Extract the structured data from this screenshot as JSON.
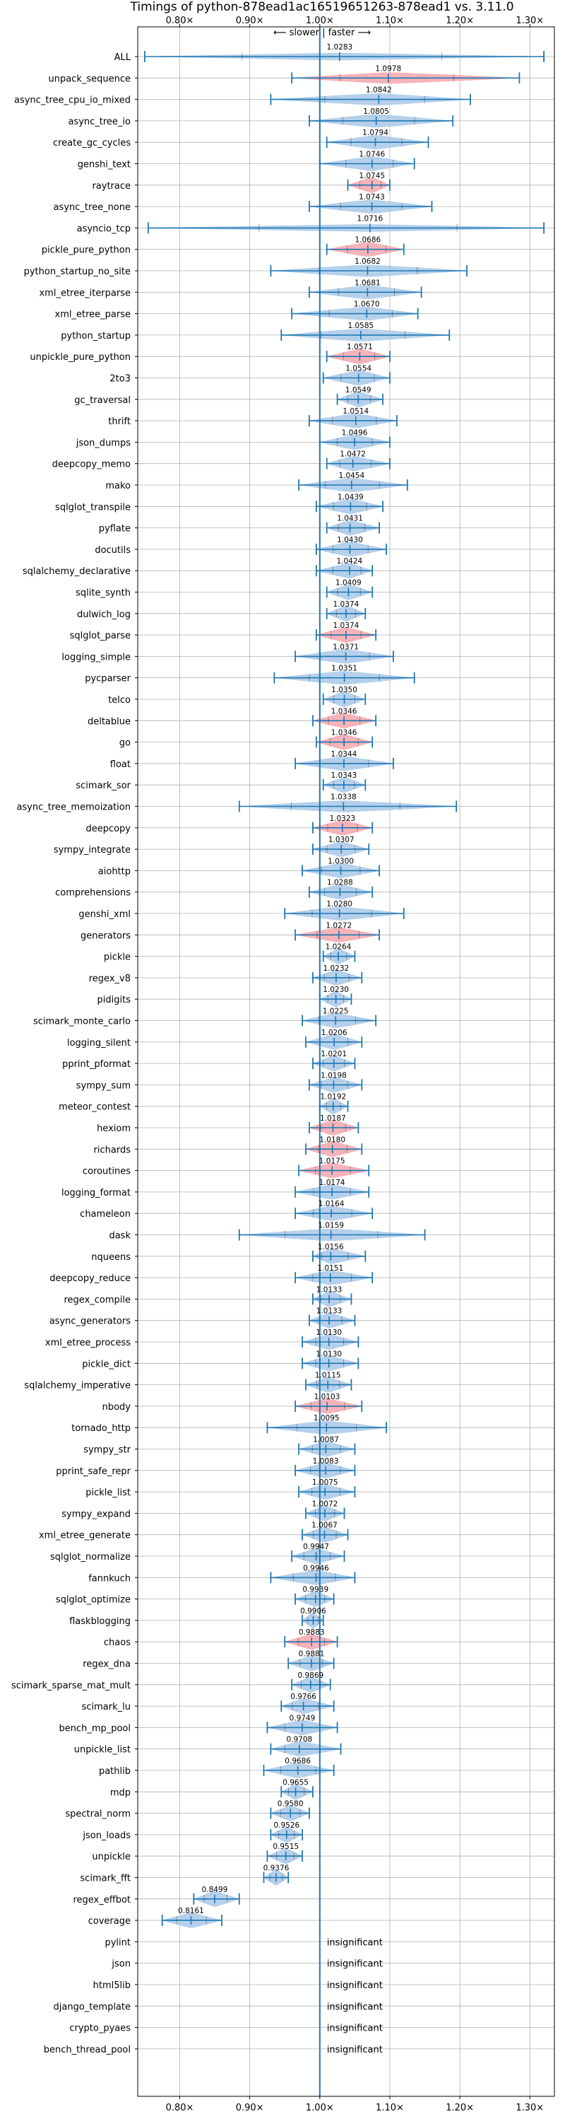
{
  "chart_data": {
    "type": "violin",
    "title": "Timings of python-878ead1ac16519651263-878ead1 vs. 3.11.0",
    "subtitle": "⟵ slower | faster ⟶",
    "xlim": [
      0.74,
      1.335
    ],
    "x_ticks": [
      0.8,
      0.9,
      1.0,
      1.1,
      1.2,
      1.3
    ],
    "x_tick_labels": [
      "0.80×",
      "0.90×",
      "1.00×",
      "1.10×",
      "1.20×",
      "1.30×"
    ],
    "reference_line": 1.0,
    "grid": true,
    "colors": {
      "faster": "#a8c8e8",
      "slower": "#f4a6ac",
      "line": "#1f77b4"
    },
    "series": [
      {
        "label": "ALL",
        "value": 1.0283,
        "lo": 0.75,
        "hi": 1.32,
        "slower": false
      },
      {
        "label": "unpack_sequence",
        "value": 1.0978,
        "lo": 0.96,
        "hi": 1.285,
        "slower": true
      },
      {
        "label": "async_tree_cpu_io_mixed",
        "value": 1.0842,
        "lo": 0.93,
        "hi": 1.215,
        "slower": false
      },
      {
        "label": "async_tree_io",
        "value": 1.0805,
        "lo": 0.985,
        "hi": 1.19,
        "slower": false
      },
      {
        "label": "create_gc_cycles",
        "value": 1.0794,
        "lo": 1.01,
        "hi": 1.155,
        "slower": false
      },
      {
        "label": "genshi_text",
        "value": 1.0746,
        "lo": 1.0,
        "hi": 1.135,
        "slower": false
      },
      {
        "label": "raytrace",
        "value": 1.0745,
        "lo": 1.04,
        "hi": 1.1,
        "slower": true
      },
      {
        "label": "async_tree_none",
        "value": 1.0743,
        "lo": 0.985,
        "hi": 1.16,
        "slower": false
      },
      {
        "label": "asyncio_tcp",
        "value": 1.0716,
        "lo": 0.755,
        "hi": 1.32,
        "slower": false
      },
      {
        "label": "pickle_pure_python",
        "value": 1.0686,
        "lo": 1.01,
        "hi": 1.12,
        "slower": true
      },
      {
        "label": "python_startup_no_site",
        "value": 1.0682,
        "lo": 0.93,
        "hi": 1.21,
        "slower": false
      },
      {
        "label": "xml_etree_iterparse",
        "value": 1.0681,
        "lo": 0.985,
        "hi": 1.145,
        "slower": false
      },
      {
        "label": "xml_etree_parse",
        "value": 1.067,
        "lo": 0.96,
        "hi": 1.14,
        "slower": false
      },
      {
        "label": "python_startup",
        "value": 1.0585,
        "lo": 0.945,
        "hi": 1.185,
        "slower": false
      },
      {
        "label": "unpickle_pure_python",
        "value": 1.0571,
        "lo": 1.01,
        "hi": 1.1,
        "slower": true
      },
      {
        "label": "2to3",
        "value": 1.0554,
        "lo": 1.005,
        "hi": 1.1,
        "slower": false
      },
      {
        "label": "gc_traversal",
        "value": 1.0549,
        "lo": 1.025,
        "hi": 1.09,
        "slower": false
      },
      {
        "label": "thrift",
        "value": 1.0514,
        "lo": 0.985,
        "hi": 1.11,
        "slower": false
      },
      {
        "label": "json_dumps",
        "value": 1.0496,
        "lo": 1.0,
        "hi": 1.1,
        "slower": false
      },
      {
        "label": "deepcopy_memo",
        "value": 1.0472,
        "lo": 1.01,
        "hi": 1.1,
        "slower": false
      },
      {
        "label": "mako",
        "value": 1.0454,
        "lo": 0.97,
        "hi": 1.125,
        "slower": false
      },
      {
        "label": "sqlglot_transpile",
        "value": 1.0439,
        "lo": 0.995,
        "hi": 1.09,
        "slower": false
      },
      {
        "label": "pyflate",
        "value": 1.0431,
        "lo": 1.01,
        "hi": 1.085,
        "slower": false
      },
      {
        "label": "docutils",
        "value": 1.043,
        "lo": 0.995,
        "hi": 1.095,
        "slower": false
      },
      {
        "label": "sqlalchemy_declarative",
        "value": 1.0424,
        "lo": 0.995,
        "hi": 1.075,
        "slower": false
      },
      {
        "label": "sqlite_synth",
        "value": 1.0409,
        "lo": 1.01,
        "hi": 1.075,
        "slower": false
      },
      {
        "label": "dulwich_log",
        "value": 1.0374,
        "lo": 1.01,
        "hi": 1.065,
        "slower": false
      },
      {
        "label": "sqlglot_parse",
        "value": 1.0374,
        "lo": 0.995,
        "hi": 1.08,
        "slower": true
      },
      {
        "label": "logging_simple",
        "value": 1.0371,
        "lo": 0.965,
        "hi": 1.105,
        "slower": false
      },
      {
        "label": "pycparser",
        "value": 1.0351,
        "lo": 0.935,
        "hi": 1.135,
        "slower": false
      },
      {
        "label": "telco",
        "value": 1.035,
        "lo": 1.005,
        "hi": 1.065,
        "slower": false
      },
      {
        "label": "deltablue",
        "value": 1.0346,
        "lo": 0.99,
        "hi": 1.08,
        "slower": true
      },
      {
        "label": "go",
        "value": 1.0346,
        "lo": 0.995,
        "hi": 1.075,
        "slower": true
      },
      {
        "label": "float",
        "value": 1.0344,
        "lo": 0.965,
        "hi": 1.105,
        "slower": false
      },
      {
        "label": "scimark_sor",
        "value": 1.0343,
        "lo": 1.005,
        "hi": 1.065,
        "slower": false
      },
      {
        "label": "async_tree_memoization",
        "value": 1.0338,
        "lo": 0.885,
        "hi": 1.195,
        "slower": false
      },
      {
        "label": "deepcopy",
        "value": 1.0323,
        "lo": 0.99,
        "hi": 1.075,
        "slower": true
      },
      {
        "label": "sympy_integrate",
        "value": 1.0307,
        "lo": 0.99,
        "hi": 1.07,
        "slower": false
      },
      {
        "label": "aiohttp",
        "value": 1.03,
        "lo": 0.975,
        "hi": 1.085,
        "slower": false
      },
      {
        "label": "comprehensions",
        "value": 1.0288,
        "lo": 0.985,
        "hi": 1.075,
        "slower": false
      },
      {
        "label": "genshi_xml",
        "value": 1.028,
        "lo": 0.95,
        "hi": 1.12,
        "slower": false
      },
      {
        "label": "generators",
        "value": 1.0272,
        "lo": 0.965,
        "hi": 1.085,
        "slower": true
      },
      {
        "label": "pickle",
        "value": 1.0264,
        "lo": 1.005,
        "hi": 1.05,
        "slower": false
      },
      {
        "label": "regex_v8",
        "value": 1.0232,
        "lo": 0.99,
        "hi": 1.06,
        "slower": false
      },
      {
        "label": "pidigits",
        "value": 1.023,
        "lo": 1.0,
        "hi": 1.045,
        "slower": false
      },
      {
        "label": "scimark_monte_carlo",
        "value": 1.0225,
        "lo": 0.975,
        "hi": 1.08,
        "slower": false
      },
      {
        "label": "logging_silent",
        "value": 1.0206,
        "lo": 0.98,
        "hi": 1.06,
        "slower": false
      },
      {
        "label": "pprint_pformat",
        "value": 1.0201,
        "lo": 0.99,
        "hi": 1.05,
        "slower": false
      },
      {
        "label": "sympy_sum",
        "value": 1.0198,
        "lo": 0.985,
        "hi": 1.06,
        "slower": false
      },
      {
        "label": "meteor_contest",
        "value": 1.0192,
        "lo": 1.0,
        "hi": 1.04,
        "slower": false
      },
      {
        "label": "hexiom",
        "value": 1.0187,
        "lo": 0.985,
        "hi": 1.055,
        "slower": true
      },
      {
        "label": "richards",
        "value": 1.018,
        "lo": 0.98,
        "hi": 1.06,
        "slower": true
      },
      {
        "label": "coroutines",
        "value": 1.0175,
        "lo": 0.97,
        "hi": 1.07,
        "slower": true
      },
      {
        "label": "logging_format",
        "value": 1.0174,
        "lo": 0.965,
        "hi": 1.07,
        "slower": false
      },
      {
        "label": "chameleon",
        "value": 1.0164,
        "lo": 0.965,
        "hi": 1.075,
        "slower": false
      },
      {
        "label": "dask",
        "value": 1.0159,
        "lo": 0.885,
        "hi": 1.15,
        "slower": false
      },
      {
        "label": "nqueens",
        "value": 1.0156,
        "lo": 0.99,
        "hi": 1.065,
        "slower": false
      },
      {
        "label": "deepcopy_reduce",
        "value": 1.0151,
        "lo": 0.965,
        "hi": 1.075,
        "slower": false
      },
      {
        "label": "regex_compile",
        "value": 1.0133,
        "lo": 0.99,
        "hi": 1.045,
        "slower": false
      },
      {
        "label": "async_generators",
        "value": 1.0133,
        "lo": 0.985,
        "hi": 1.05,
        "slower": false
      },
      {
        "label": "xml_etree_process",
        "value": 1.013,
        "lo": 0.975,
        "hi": 1.055,
        "slower": false
      },
      {
        "label": "pickle_dict",
        "value": 1.013,
        "lo": 0.975,
        "hi": 1.055,
        "slower": false
      },
      {
        "label": "sqlalchemy_imperative",
        "value": 1.0115,
        "lo": 0.98,
        "hi": 1.045,
        "slower": false
      },
      {
        "label": "nbody",
        "value": 1.0103,
        "lo": 0.965,
        "hi": 1.06,
        "slower": true
      },
      {
        "label": "tornado_http",
        "value": 1.0095,
        "lo": 0.925,
        "hi": 1.095,
        "slower": false
      },
      {
        "label": "sympy_str",
        "value": 1.0087,
        "lo": 0.97,
        "hi": 1.05,
        "slower": false
      },
      {
        "label": "pprint_safe_repr",
        "value": 1.0083,
        "lo": 0.965,
        "hi": 1.05,
        "slower": false
      },
      {
        "label": "pickle_list",
        "value": 1.0075,
        "lo": 0.97,
        "hi": 1.05,
        "slower": false
      },
      {
        "label": "sympy_expand",
        "value": 1.0072,
        "lo": 0.98,
        "hi": 1.035,
        "slower": false
      },
      {
        "label": "xml_etree_generate",
        "value": 1.0067,
        "lo": 0.975,
        "hi": 1.04,
        "slower": false
      },
      {
        "label": "sqlglot_normalize",
        "value": 0.9947,
        "lo": 0.96,
        "hi": 1.035,
        "slower": false
      },
      {
        "label": "fannkuch",
        "value": 0.9946,
        "lo": 0.93,
        "hi": 1.05,
        "slower": false
      },
      {
        "label": "sqlglot_optimize",
        "value": 0.9939,
        "lo": 0.965,
        "hi": 1.02,
        "slower": false
      },
      {
        "label": "flaskblogging",
        "value": 0.9906,
        "lo": 0.975,
        "hi": 1.005,
        "slower": false
      },
      {
        "label": "chaos",
        "value": 0.9883,
        "lo": 0.95,
        "hi": 1.025,
        "slower": true
      },
      {
        "label": "regex_dna",
        "value": 0.9881,
        "lo": 0.955,
        "hi": 1.02,
        "slower": false
      },
      {
        "label": "scimark_sparse_mat_mult",
        "value": 0.9869,
        "lo": 0.96,
        "hi": 1.015,
        "slower": false
      },
      {
        "label": "scimark_lu",
        "value": 0.9766,
        "lo": 0.945,
        "hi": 1.02,
        "slower": false
      },
      {
        "label": "bench_mp_pool",
        "value": 0.9749,
        "lo": 0.925,
        "hi": 1.025,
        "slower": false
      },
      {
        "label": "unpickle_list",
        "value": 0.9708,
        "lo": 0.93,
        "hi": 1.03,
        "slower": false
      },
      {
        "label": "pathlib",
        "value": 0.9686,
        "lo": 0.92,
        "hi": 1.02,
        "slower": false
      },
      {
        "label": "mdp",
        "value": 0.9655,
        "lo": 0.945,
        "hi": 0.99,
        "slower": false
      },
      {
        "label": "spectral_norm",
        "value": 0.958,
        "lo": 0.93,
        "hi": 0.985,
        "slower": false
      },
      {
        "label": "json_loads",
        "value": 0.9526,
        "lo": 0.93,
        "hi": 0.975,
        "slower": false
      },
      {
        "label": "unpickle",
        "value": 0.9515,
        "lo": 0.925,
        "hi": 0.975,
        "slower": false
      },
      {
        "label": "scimark_fft",
        "value": 0.9376,
        "lo": 0.92,
        "hi": 0.955,
        "slower": false
      },
      {
        "label": "regex_effbot",
        "value": 0.8499,
        "lo": 0.82,
        "hi": 0.885,
        "slower": false
      },
      {
        "label": "coverage",
        "value": 0.8161,
        "lo": 0.775,
        "hi": 0.86,
        "slower": false
      }
    ],
    "insignificant": [
      "pylint",
      "json",
      "html5lib",
      "django_template",
      "crypto_pyaes",
      "bench_thread_pool"
    ],
    "insignificant_text": "insignificant"
  }
}
